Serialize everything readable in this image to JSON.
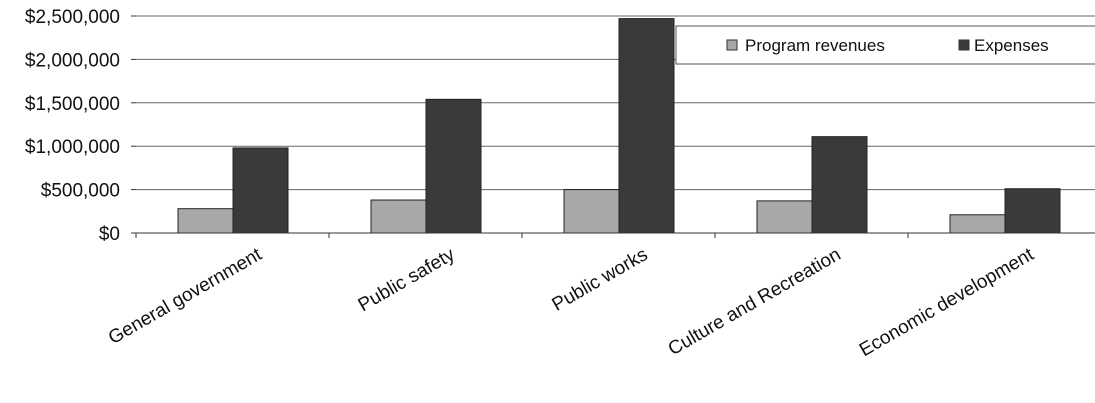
{
  "chart_data": {
    "type": "bar",
    "categories": [
      "General government",
      "Public safety",
      "Public works",
      "Culture and Recreation",
      "Economic development"
    ],
    "series": [
      {
        "name": "Program revenues",
        "values": [
          280000,
          380000,
          500000,
          370000,
          210000
        ],
        "color": "#a8a8a8"
      },
      {
        "name": "Expenses",
        "values": [
          980000,
          1540000,
          2470000,
          1110000,
          510000
        ],
        "color": "#3a3a3a"
      }
    ],
    "yticks": [
      "$0",
      "$500,000",
      "$1,000,000",
      "$1,500,000",
      "$2,000,000",
      "$2,500,000"
    ],
    "ylim": [
      0,
      2500000
    ],
    "grid": true,
    "legend_position": "top-right"
  }
}
